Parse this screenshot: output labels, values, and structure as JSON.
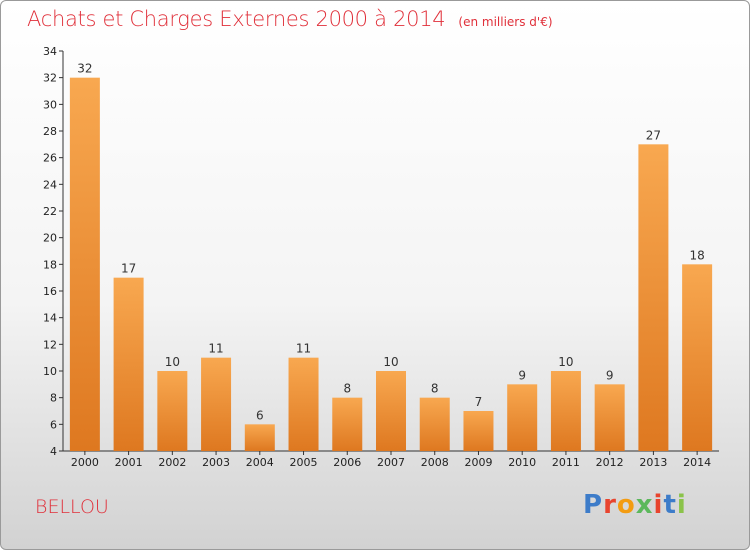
{
  "title": "Achats et Charges Externes 2000 à 2014",
  "unit": "(en milliers d'€)",
  "commune": "BELLOU",
  "logo": {
    "text": "Proxiti",
    "colors": [
      "#3d7cc9",
      "#e8442e",
      "#f39c12",
      "#5cb85c",
      "#e8442e",
      "#3d7cc9",
      "#8bc34a"
    ]
  },
  "colors": {
    "bar_light": "#f8a850",
    "bar_dark": "#e07a20",
    "title": "#e0303a"
  },
  "chart_data": {
    "type": "bar",
    "title": "Achats et Charges Externes 2000 à 2014",
    "categories": [
      "2000",
      "2001",
      "2002",
      "2003",
      "2004",
      "2005",
      "2006",
      "2007",
      "2008",
      "2009",
      "2010",
      "2011",
      "2012",
      "2013",
      "2014"
    ],
    "values": [
      32,
      17,
      10,
      11,
      6,
      11,
      8,
      10,
      8,
      7,
      9,
      10,
      9,
      27,
      18
    ],
    "ylim": [
      4,
      34
    ],
    "yticks": [
      4,
      6,
      8,
      10,
      12,
      14,
      16,
      18,
      20,
      22,
      24,
      26,
      28,
      30,
      32,
      34
    ],
    "grid": false,
    "legend": "none"
  }
}
